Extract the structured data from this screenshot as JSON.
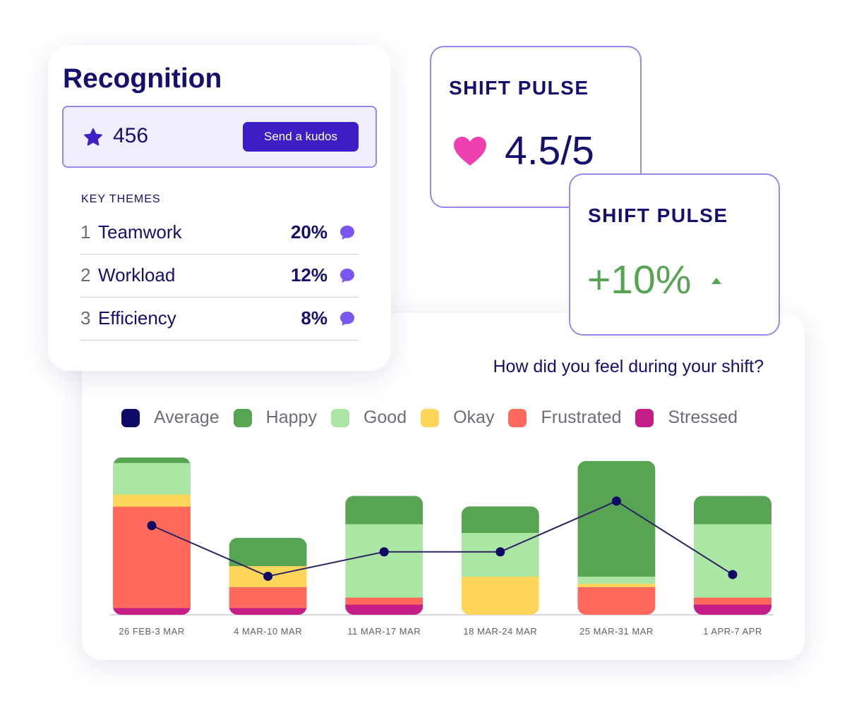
{
  "recognition": {
    "title": "Recognition",
    "kudos_count": "456",
    "send_button": "Send a kudos",
    "themes_label": "KEY THEMES",
    "themes": [
      {
        "rank": "1",
        "name": "Teamwork",
        "percent": "20%"
      },
      {
        "rank": "2",
        "name": "Workload",
        "percent": "12%"
      },
      {
        "rank": "3",
        "name": "Efficiency",
        "percent": "8%"
      }
    ]
  },
  "pulse_score": {
    "label": "SHIFT PULSE",
    "value": "4.5/5"
  },
  "pulse_change": {
    "label": "SHIFT PULSE",
    "value": "+10%"
  },
  "colors": {
    "average": "#0f0a66",
    "happy": "#57a553",
    "good": "#ace6a5",
    "okay": "#ffd65c",
    "frustrated": "#ff6a5c",
    "stressed": "#c41e86",
    "accent": "#3e1ec7",
    "heart": "#ee3fb1"
  },
  "icons": {
    "star": "star-icon",
    "comment": "comment-icon",
    "heart": "heart-icon",
    "trend_up": "caret-up-icon"
  },
  "chart_data": {
    "type": "bar",
    "title": "How did you feel during your shift?",
    "legend": [
      "Average",
      "Happy",
      "Good",
      "Okay",
      "Frustrated",
      "Stressed"
    ],
    "legend_position": "top",
    "categories": [
      "26 FEB-3 MAR",
      "4 MAR-10 MAR",
      "11 MAR-17 MAR",
      "18 MAR-24 MAR",
      "25 MAR-31 MAR",
      "1 APR-7 APR"
    ],
    "series": [
      {
        "name": "Stressed",
        "values": [
          4,
          4,
          6,
          0,
          0,
          6
        ]
      },
      {
        "name": "Frustrated",
        "values": [
          58,
          12,
          4,
          0,
          16,
          4
        ]
      },
      {
        "name": "Okay",
        "values": [
          7,
          12,
          0,
          22,
          2,
          0
        ]
      },
      {
        "name": "Good",
        "values": [
          18,
          0,
          42,
          25,
          4,
          42
        ]
      },
      {
        "name": "Happy",
        "values": [
          3,
          16,
          16,
          15,
          66,
          16
        ]
      }
    ],
    "line": {
      "name": "Average",
      "values": [
        51,
        22,
        36,
        36,
        65,
        23
      ]
    },
    "stacked": true,
    "ylim": [
      0,
      100
    ],
    "grid": false
  }
}
